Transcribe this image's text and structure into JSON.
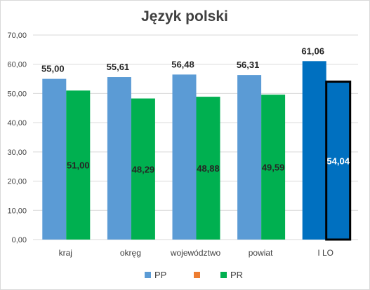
{
  "chart_data": {
    "type": "bar",
    "title": "Język polski",
    "categories": [
      "kraj",
      "okręg",
      "województwo",
      "powiat",
      "I LO"
    ],
    "series": [
      {
        "name": "PP",
        "color": "#5B9BD5",
        "values": [
          55.0,
          55.61,
          56.48,
          56.31,
          61.06
        ]
      },
      {
        "name": "PR",
        "color": "#00B050",
        "values": [
          51.0,
          48.29,
          48.88,
          49.59,
          54.04
        ]
      }
    ],
    "data_labels": {
      "PP": [
        "55,00",
        "55,61",
        "56,48",
        "56,31",
        "61,06"
      ],
      "PR": [
        "51,00",
        "48,29",
        "48,88",
        "49,59",
        "54,04"
      ]
    },
    "highlight": {
      "category": "I LO",
      "color": "#0070C0"
    },
    "legend": [
      {
        "name": "PP",
        "color": "#5B9BD5"
      },
      {
        "name": "",
        "color": "#ED7D31"
      },
      {
        "name": "PR",
        "color": "#00B050"
      }
    ],
    "legend_position": "bottom",
    "ylim": [
      0,
      70
    ],
    "yticks": [
      "0,00",
      "10,00",
      "20,00",
      "30,00",
      "40,00",
      "50,00",
      "60,00",
      "70,00"
    ],
    "xlabel": "",
    "ylabel": "",
    "grid": true
  }
}
